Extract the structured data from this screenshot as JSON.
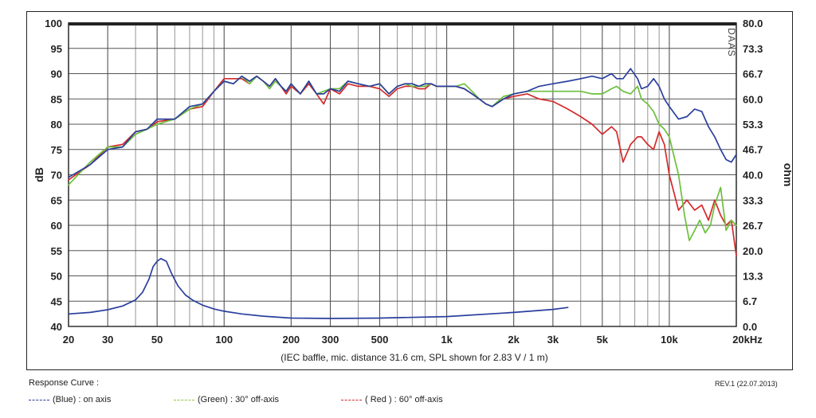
{
  "chart_data": {
    "type": "line",
    "x_scale": "log",
    "xlim": [
      20,
      20000
    ],
    "ylim": [
      40,
      100
    ],
    "ylim_right": [
      0,
      80
    ],
    "ylabel": "dB",
    "ylabel_right": "ohm",
    "grid": true,
    "x_ticks": [
      {
        "v": 20,
        "label": "20"
      },
      {
        "v": 30,
        "label": "30"
      },
      {
        "v": 50,
        "label": "50"
      },
      {
        "v": 100,
        "label": "100"
      },
      {
        "v": 200,
        "label": "200"
      },
      {
        "v": 300,
        "label": "300"
      },
      {
        "v": 500,
        "label": "500"
      },
      {
        "v": 1000,
        "label": "1k"
      },
      {
        "v": 2000,
        "label": "2k"
      },
      {
        "v": 3000,
        "label": "3k"
      },
      {
        "v": 5000,
        "label": "5k"
      },
      {
        "v": 10000,
        "label": "10k"
      },
      {
        "v": 20000,
        "label": "20kHz"
      }
    ],
    "y_ticks": [
      100,
      95,
      90,
      85,
      80,
      75,
      70,
      65,
      60,
      55,
      50,
      45,
      40
    ],
    "y_ticks_right": [
      "80.0",
      "73.3",
      "66.7",
      "60.0",
      "53.3",
      "46.7",
      "40.0",
      "33.3",
      "26.7",
      "20.0",
      "13.3",
      "6.7",
      "0.0"
    ],
    "caption": "(IEC baffle, mic. distance 31.6 cm, SPL shown for 2.83 V / 1 m)",
    "watermark": "DAAS",
    "series": [
      {
        "name": "(Blue) : on axis",
        "color": "#2a3f9e",
        "x": [
          20,
          25,
          30,
          35,
          40,
          45,
          50,
          60,
          70,
          80,
          90,
          100,
          110,
          120,
          130,
          140,
          150,
          160,
          170,
          180,
          190,
          200,
          220,
          240,
          260,
          280,
          300,
          330,
          360,
          400,
          450,
          500,
          550,
          600,
          650,
          700,
          750,
          800,
          850,
          900,
          1000,
          1100,
          1200,
          1300,
          1400,
          1500,
          1600,
          1800,
          2000,
          2300,
          2600,
          3000,
          3500,
          4000,
          4500,
          5000,
          5500,
          5800,
          6200,
          6700,
          7200,
          7500,
          8000,
          8500,
          9000,
          9500,
          10000,
          11000,
          12000,
          13000,
          14000,
          15000,
          16000,
          17000,
          18000,
          19000,
          20000
        ],
        "y": [
          69.5,
          72,
          75,
          75.5,
          78.5,
          79,
          81,
          81,
          83.5,
          84,
          86.5,
          88.5,
          88,
          89.5,
          88.5,
          89.5,
          88.5,
          87.5,
          89,
          87.5,
          86.5,
          88,
          86,
          88.5,
          86,
          86,
          87,
          86.5,
          88.5,
          88,
          87.5,
          88,
          86,
          87.5,
          88,
          88,
          87.5,
          88,
          88,
          87.5,
          87.5,
          87.5,
          87,
          86,
          85,
          84,
          83.5,
          85,
          86,
          86.5,
          87.5,
          88,
          88.5,
          89,
          89.5,
          89,
          90,
          89,
          89,
          91,
          89,
          87,
          87.5,
          89,
          87.5,
          85,
          83.5,
          81,
          81.5,
          83,
          82.5,
          79.5,
          77.5,
          75,
          73,
          72.5,
          74
        ]
      },
      {
        "name": "(Green) : 30° off-axis",
        "color": "#6cbf3c",
        "x": [
          20,
          25,
          30,
          35,
          40,
          45,
          50,
          60,
          70,
          80,
          90,
          100,
          110,
          120,
          130,
          140,
          150,
          160,
          170,
          180,
          190,
          200,
          220,
          240,
          260,
          280,
          300,
          330,
          360,
          400,
          450,
          500,
          550,
          600,
          650,
          700,
          750,
          800,
          850,
          900,
          1000,
          1100,
          1200,
          1300,
          1400,
          1500,
          1600,
          1800,
          2000,
          2300,
          2600,
          3000,
          3500,
          4000,
          4500,
          5000,
          5500,
          5800,
          6200,
          6700,
          7200,
          7500,
          8000,
          8500,
          9000,
          9500,
          10000,
          11000,
          11700,
          12300,
          13000,
          13700,
          14500,
          15300,
          16000,
          17000,
          18000,
          19000,
          20000
        ],
        "y": [
          68,
          72.5,
          75.5,
          75.5,
          78,
          79,
          80,
          81,
          83,
          84,
          86.5,
          88.5,
          88,
          89.5,
          88,
          89.5,
          88.5,
          87,
          88.5,
          87.5,
          86.5,
          88,
          86,
          88.5,
          86,
          86.5,
          87,
          87,
          88.5,
          88,
          87.5,
          88,
          86,
          87.5,
          88,
          87.5,
          87.5,
          87.5,
          88,
          87.5,
          87.5,
          87.5,
          88,
          86.5,
          85,
          84,
          83.5,
          85.5,
          86,
          86.5,
          86.5,
          86.5,
          86.5,
          86.5,
          86,
          86,
          87,
          87.5,
          86.5,
          86,
          87.5,
          85,
          84,
          82.5,
          80,
          79,
          77.5,
          70,
          62,
          57,
          59,
          61,
          58.5,
          60,
          64,
          67.5,
          59,
          61,
          60
        ]
      },
      {
        "name": "( Red ) : 60° off-axis",
        "color": "#d42a2a",
        "x": [
          20,
          25,
          30,
          35,
          40,
          45,
          50,
          60,
          70,
          80,
          90,
          100,
          110,
          120,
          130,
          140,
          150,
          160,
          170,
          180,
          190,
          200,
          220,
          240,
          260,
          280,
          300,
          330,
          360,
          400,
          450,
          500,
          550,
          600,
          650,
          700,
          750,
          800,
          850,
          900,
          1000,
          1100,
          1200,
          1300,
          1400,
          1500,
          1600,
          1800,
          2000,
          2300,
          2600,
          3000,
          3500,
          4000,
          4500,
          5000,
          5500,
          5800,
          6200,
          6700,
          7200,
          7500,
          8000,
          8500,
          9000,
          9500,
          10000,
          11000,
          12000,
          13000,
          14000,
          15000,
          16000,
          17000,
          18000,
          19000,
          20000
        ],
        "y": [
          69,
          72,
          75.5,
          76,
          78.5,
          79,
          80.5,
          81,
          83,
          83.5,
          86.5,
          89,
          89,
          89,
          88,
          89.5,
          88.5,
          87.5,
          89,
          87.5,
          86,
          87.5,
          86,
          88,
          86,
          84,
          87,
          86,
          88,
          87.5,
          87.5,
          87,
          85.5,
          87,
          87.5,
          87.5,
          87,
          87,
          88,
          87.5,
          87.5,
          87.5,
          87,
          86,
          85,
          84,
          83.5,
          85,
          85.5,
          86,
          85,
          84.5,
          83,
          81.5,
          80,
          78,
          79.5,
          78.5,
          72.5,
          76,
          77.5,
          77.5,
          76,
          75,
          78.5,
          76,
          70,
          63,
          65,
          63,
          64,
          61,
          65,
          62,
          60,
          61,
          54
        ]
      },
      {
        "name": "impedance",
        "axis": "right",
        "color": "#2a3f9e",
        "x": [
          20,
          25,
          30,
          35,
          40,
          43,
          46,
          48,
          50,
          52,
          55,
          58,
          62,
          67,
          72,
          80,
          90,
          100,
          120,
          150,
          200,
          300,
          500,
          1000,
          2000,
          3000,
          3500
        ],
        "y": [
          3.3,
          3.7,
          4.4,
          5.4,
          7,
          9,
          12.5,
          15.8,
          17.2,
          17.9,
          17.2,
          14,
          10.7,
          8.3,
          7,
          5.6,
          4.6,
          4,
          3.3,
          2.7,
          2.2,
          2.1,
          2.2,
          2.6,
          3.7,
          4.5,
          5
        ]
      }
    ]
  },
  "labels": {
    "response_title": "Response Curve :",
    "revision": "REV.1 (22.07.2013)"
  },
  "legend": [
    {
      "label": "(Blue) : on axis",
      "color": "#2a3f9e"
    },
    {
      "label": "(Green) : 30° off-axis",
      "color": "#8cc63f"
    },
    {
      "label": "( Red ) : 60° off-axis",
      "color": "#d42a2a"
    }
  ]
}
